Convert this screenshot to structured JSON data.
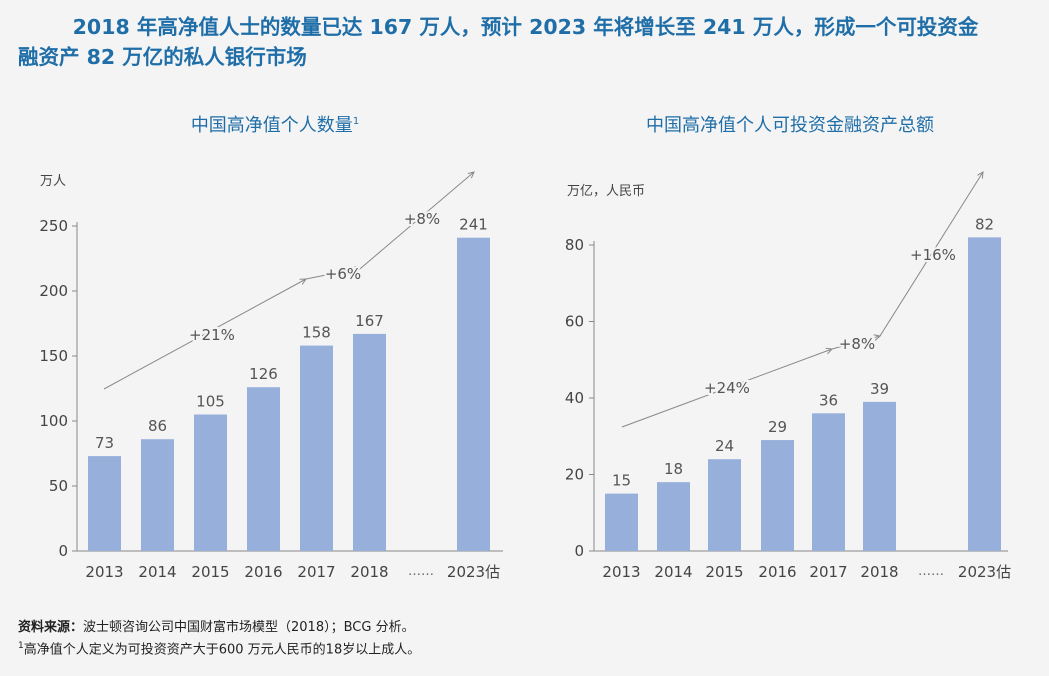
{
  "headline": {
    "line1": "2018 年高净值人士的数量已达 167 万人，预计 2023 年将增长至 241 万人，形成一个可投资金",
    "line2": "融资产 82 万亿的私人银行市场"
  },
  "chart_data": [
    {
      "type": "bar",
      "title": "中国高净值个人数量",
      "title_sup": "1",
      "ylabel": "万人",
      "categories": [
        "2013",
        "2014",
        "2015",
        "2016",
        "2017",
        "2018",
        "2023估"
      ],
      "values": [
        73,
        86,
        105,
        126,
        158,
        167,
        241
      ],
      "gap_label": "……",
      "ylim": [
        0,
        250
      ],
      "yticks": [
        0,
        50,
        100,
        150,
        200,
        250
      ],
      "growth_labels": [
        "+21%",
        "+6%",
        "+8%"
      ],
      "bar_color": "#97afdb",
      "grid": false
    },
    {
      "type": "bar",
      "title": "中国高净值个人可投资金融资产总额",
      "ylabel": "万亿，人民币",
      "categories": [
        "2013",
        "2014",
        "2015",
        "2016",
        "2017",
        "2018",
        "2023估"
      ],
      "values": [
        15,
        18,
        24,
        29,
        36,
        39,
        82
      ],
      "gap_label": "……",
      "ylim": [
        0,
        80
      ],
      "yticks": [
        0,
        20,
        40,
        60,
        80
      ],
      "growth_labels": [
        "+24%",
        "+8%",
        "+16%"
      ],
      "bar_color": "#97afdb",
      "grid": false
    }
  ],
  "source": {
    "label": "资料来源：",
    "text": "波士顿咨询公司中国财富市场模型（2018）；BCG 分析。",
    "note_marker": "1",
    "note": "高净值个人定义为可投资资产大于600 万元人民币的18岁以上成人。"
  }
}
